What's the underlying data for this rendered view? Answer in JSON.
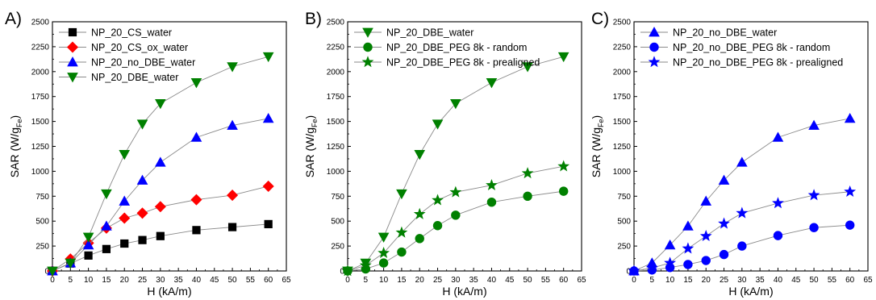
{
  "chart_data": [
    {
      "type": "scatter",
      "panel_label": "A)",
      "xlabel": "H (kA/m)",
      "ylabel": "SAR (W/g",
      "ylabel_sub": "Fe",
      "ylabel_close": ")",
      "xlim": [
        0,
        65
      ],
      "ylim": [
        0,
        2500
      ],
      "xticks": [
        "0",
        "5",
        "10",
        "15",
        "20",
        "25",
        "30",
        "35",
        "40",
        "45",
        "50",
        "55",
        "60",
        "65"
      ],
      "yticks": [
        "0",
        "250",
        "500",
        "750",
        "1000",
        "1250",
        "1500",
        "1750",
        "2000",
        "2250",
        "2500"
      ],
      "legend_position": "top-left",
      "grid": false,
      "series": [
        {
          "name": "NP_20_CS_water",
          "marker": "square",
          "color": "#000000",
          "x": [
            0,
            5,
            10,
            15,
            20,
            25,
            30,
            40,
            50,
            60
          ],
          "y": [
            0,
            75,
            155,
            220,
            275,
            310,
            350,
            410,
            440,
            470
          ]
        },
        {
          "name": "NP_20_CS_ox_water",
          "marker": "diamond",
          "color": "#ff0000",
          "x": [
            0,
            5,
            10,
            15,
            20,
            25,
            30,
            40,
            50,
            60
          ],
          "y": [
            0,
            120,
            280,
            430,
            530,
            580,
            645,
            715,
            760,
            850
          ]
        },
        {
          "name": "NP_20_no_DBE_water",
          "marker": "triangle-up",
          "color": "#0000ff",
          "x": [
            0,
            5,
            10,
            15,
            20,
            25,
            30,
            40,
            50,
            60
          ],
          "y": [
            0,
            80,
            260,
            450,
            700,
            910,
            1090,
            1340,
            1460,
            1530
          ]
        },
        {
          "name": "NP_20_DBE_water",
          "marker": "triangle-down",
          "color": "#008000",
          "x": [
            0,
            5,
            10,
            15,
            20,
            25,
            30,
            40,
            50,
            60
          ],
          "y": [
            0,
            80,
            340,
            775,
            1170,
            1475,
            1680,
            1890,
            2050,
            2150
          ]
        }
      ]
    },
    {
      "type": "scatter",
      "panel_label": "B)",
      "xlabel": "H (kA/m)",
      "ylabel": "SAR (W/g",
      "ylabel_sub": "Fe",
      "ylabel_close": ")",
      "xlim": [
        0,
        65
      ],
      "ylim": [
        0,
        2500
      ],
      "xticks": [
        "0",
        "5",
        "10",
        "15",
        "20",
        "25",
        "30",
        "35",
        "40",
        "45",
        "50",
        "55",
        "60",
        "65"
      ],
      "yticks": [
        "0",
        "250",
        "500",
        "750",
        "1000",
        "1250",
        "1500",
        "1750",
        "2000",
        "2250",
        "2500"
      ],
      "legend_position": "top-left",
      "grid": false,
      "series": [
        {
          "name": "NP_20_DBE_water",
          "marker": "triangle-down",
          "color": "#008000",
          "x": [
            0,
            5,
            10,
            15,
            20,
            25,
            30,
            40,
            50,
            60
          ],
          "y": [
            0,
            80,
            340,
            775,
            1170,
            1475,
            1680,
            1890,
            2050,
            2150
          ]
        },
        {
          "name": "NP_20_DBE_PEG 8k - random",
          "marker": "circle",
          "color": "#008000",
          "x": [
            0,
            5,
            10,
            15,
            20,
            25,
            30,
            40,
            50,
            60
          ],
          "y": [
            0,
            20,
            80,
            190,
            325,
            455,
            560,
            690,
            750,
            800
          ]
        },
        {
          "name": "NP_20_DBE_PEG 8k - prealigned",
          "marker": "star",
          "color": "#008000",
          "x": [
            0,
            5,
            10,
            15,
            20,
            25,
            30,
            40,
            50,
            60
          ],
          "y": [
            0,
            55,
            180,
            385,
            570,
            710,
            790,
            860,
            980,
            1050
          ]
        }
      ]
    },
    {
      "type": "scatter",
      "panel_label": "C)",
      "xlabel": "H (kA/m)",
      "ylabel": "SAR (W/g",
      "ylabel_sub": "Fe",
      "ylabel_close": ")",
      "xlim": [
        0,
        65
      ],
      "ylim": [
        0,
        2500
      ],
      "xticks": [
        "0",
        "5",
        "10",
        "15",
        "20",
        "25",
        "30",
        "35",
        "40",
        "45",
        "50",
        "55",
        "60",
        "65"
      ],
      "yticks": [
        "0",
        "250",
        "500",
        "750",
        "1000",
        "1250",
        "1500",
        "1750",
        "2000",
        "2250",
        "2500"
      ],
      "legend_position": "top-left",
      "grid": false,
      "series": [
        {
          "name": "NP_20_no_DBE_water",
          "marker": "triangle-up",
          "color": "#0000ff",
          "x": [
            0,
            5,
            10,
            15,
            20,
            25,
            30,
            40,
            50,
            60
          ],
          "y": [
            0,
            80,
            260,
            450,
            700,
            910,
            1090,
            1340,
            1460,
            1530
          ]
        },
        {
          "name": "NP_20_no_DBE_PEG 8k - random",
          "marker": "circle",
          "color": "#0000ff",
          "x": [
            0,
            5,
            10,
            15,
            20,
            25,
            30,
            40,
            50,
            60
          ],
          "y": [
            0,
            10,
            35,
            65,
            105,
            165,
            250,
            355,
            435,
            460
          ]
        },
        {
          "name": "NP_20_no_DBE_PEG 8k - prealigned",
          "marker": "star",
          "color": "#0000ff",
          "x": [
            0,
            5,
            10,
            15,
            20,
            25,
            30,
            40,
            50,
            60
          ],
          "y": [
            0,
            30,
            80,
            225,
            350,
            475,
            580,
            680,
            760,
            795
          ]
        }
      ]
    }
  ]
}
